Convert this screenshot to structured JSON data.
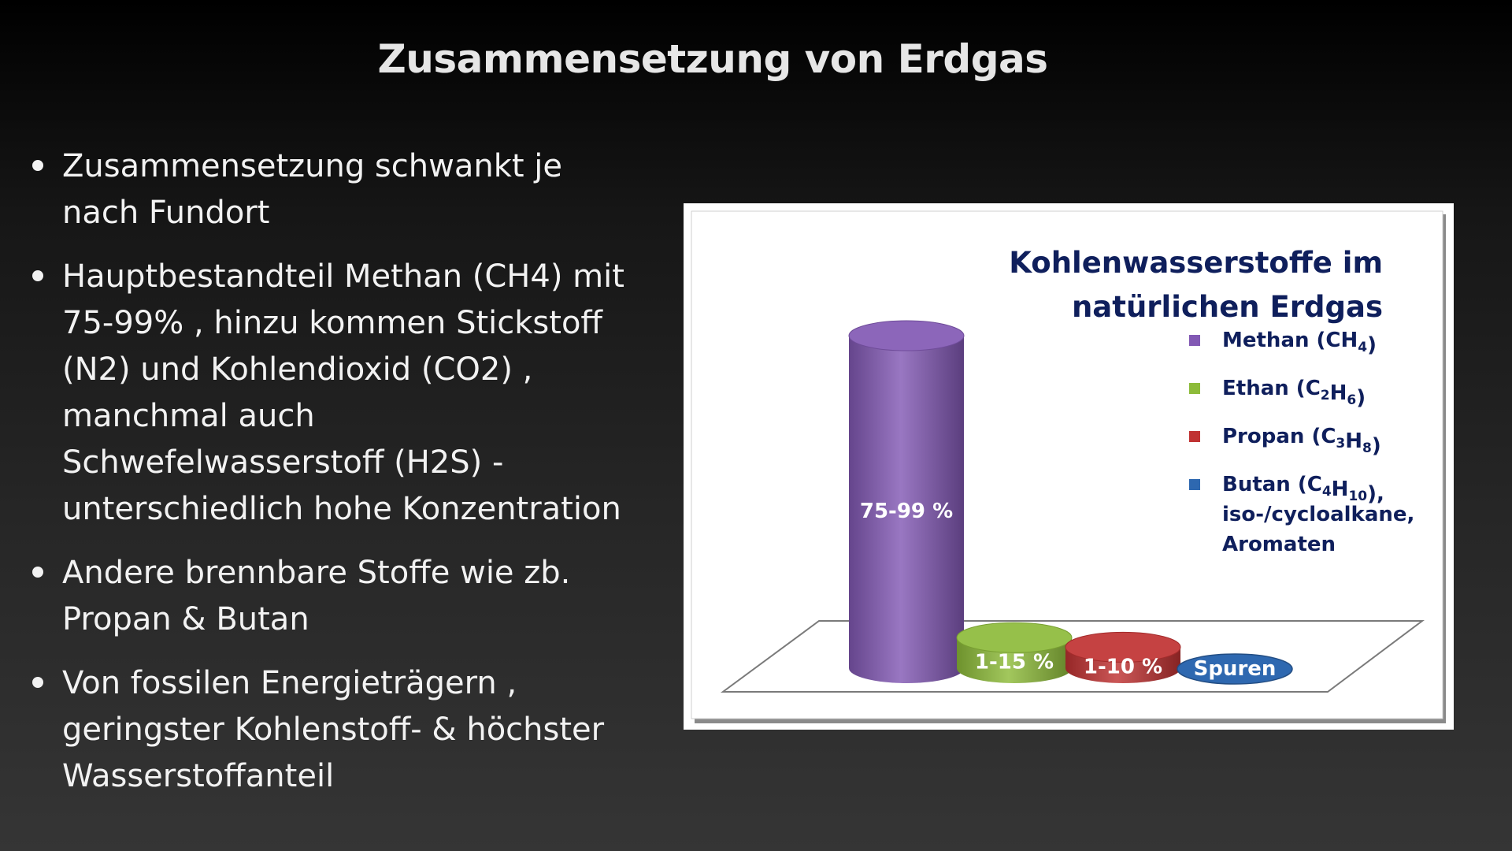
{
  "slide": {
    "title": "Zusammensetzung von Erdgas",
    "bullets": [
      "Zusammensetzung schwankt je nach Fundort",
      "Hauptbestandteil Methan (CH4) mit 75-99% , hinzu kommen Stickstoff (N2) und Kohlendioxid (CO2) , manchmal auch Schwefelwasserstoff (H2S) - unterschiedlich hohe Konzentration",
      "Andere brennbare Stoffe wie zb. Propan & Butan",
      "Von fossilen Energieträgern , geringster Kohlenstoff- & höchster Wasserstoffanteil"
    ]
  },
  "chart_data": {
    "type": "bar",
    "style": "3d-cylinder",
    "title_lines": [
      "Kohlenwasserstoffe im",
      "natürlichen Erdgas"
    ],
    "categories": [
      "Methan (CH4)",
      "Ethan (C2H6)",
      "Propan (C3H8)",
      "Butan (C4H10), iso-/cycloalkane, Aromaten"
    ],
    "values": [
      87,
      8,
      5.5,
      0
    ],
    "ranges": [
      [
        75,
        99
      ],
      [
        1,
        15
      ],
      [
        1,
        10
      ],
      null
    ],
    "data_labels": [
      "75-99 %",
      "1-15 %",
      "1-10 %",
      "Spuren"
    ],
    "colors": [
      "#8259b4",
      "#8dbb3a",
      "#c03232",
      "#2e68b0"
    ],
    "legend": {
      "position": "right",
      "entries": [
        {
          "pre": "Methan (CH",
          "sub": "4",
          "post": ")"
        },
        {
          "pre": "Ethan (C",
          "sub": "2",
          "mid": "H",
          "sub2": "6",
          "post": ")"
        },
        {
          "pre": "Propan (C",
          "sub": "3",
          "mid": "H",
          "sub2": "8",
          "post": ")"
        },
        {
          "pre": "Butan (C",
          "sub": "4",
          "mid": "H",
          "sub2": "10",
          "post": "),",
          "extra_lines": [
            "iso-/cycloalkane,",
            "Aromaten"
          ]
        }
      ]
    },
    "grid": false,
    "title_color": "#0f1f5c"
  }
}
